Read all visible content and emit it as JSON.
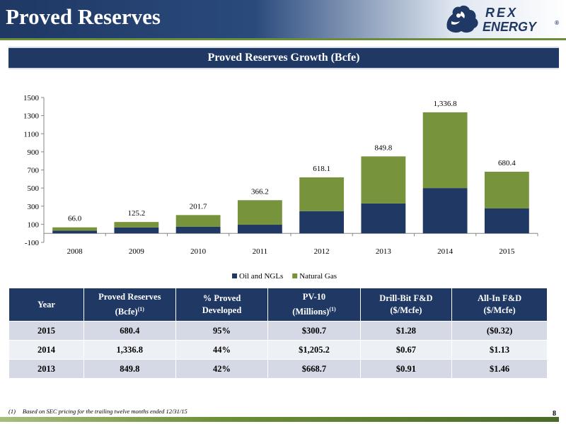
{
  "header": {
    "title": "Proved Reserves"
  },
  "logo": {
    "line1": "REX",
    "line2": "ENERGY",
    "mark": "®"
  },
  "banner": {
    "title": "Proved Reserves Growth (Bcfe)"
  },
  "colors": {
    "navy": "#1f3864",
    "green": "#77933c"
  },
  "chart_data": {
    "type": "bar",
    "stacked": true,
    "categories": [
      "2008",
      "2009",
      "2010",
      "2011",
      "2012",
      "2013",
      "2014",
      "2015"
    ],
    "series": [
      {
        "name": "Oil and NGLs",
        "color": "#1f3864",
        "values": [
          30,
          65,
          72,
          95,
          245,
          330,
          500,
          275
        ]
      },
      {
        "name": "Natural Gas",
        "color": "#77933c",
        "values": [
          36.0,
          60.2,
          129.7,
          271.2,
          373.1,
          519.8,
          836.8,
          405.4
        ]
      }
    ],
    "totals": [
      66.0,
      125.2,
      201.7,
      366.2,
      618.1,
      849.8,
      1336.8,
      680.4
    ],
    "total_labels": [
      "66.0",
      "125.2",
      "201.7",
      "366.2",
      "618.1",
      "849.8",
      "1,336.8",
      "680.4"
    ],
    "yticks": [
      "-100",
      "100",
      "300",
      "500",
      "700",
      "900",
      "1100",
      "1300",
      "1500"
    ],
    "ylim": [
      -100,
      1500
    ],
    "legend_position": "bottom",
    "grid": false
  },
  "table": {
    "headers": [
      {
        "text": "Year"
      },
      {
        "text": "Proved Reserves",
        "text2": "(Bcfe)",
        "sup": "(1)"
      },
      {
        "text": "% Proved",
        "text2": "Developed"
      },
      {
        "text": "PV-10",
        "text2": "(Millions)",
        "sup": "(1)"
      },
      {
        "text": "Drill-Bit F&D",
        "text2": "($/Mcfe)"
      },
      {
        "text": "All-In F&D",
        "text2": "($/Mcfe)"
      }
    ],
    "rows": [
      [
        "2015",
        "680.4",
        "95%",
        "$300.7",
        "$1.28",
        "($0.32)"
      ],
      [
        "2014",
        "1,336.8",
        "44%",
        "$1,205.2",
        "$0.67",
        "$1.13"
      ],
      [
        "2013",
        "849.8",
        "42%",
        "$668.7",
        "$0.91",
        "$1.46"
      ]
    ]
  },
  "footnote": {
    "num": "(1)",
    "text": "Based on SEC pricing for the trailing twelve months ended 12/31/15"
  },
  "page_number": "8"
}
